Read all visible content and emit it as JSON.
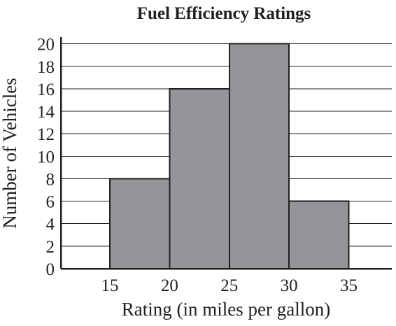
{
  "chart_data": {
    "type": "bar",
    "title": "Fuel Efficiency Ratings",
    "xlabel": "Rating (in miles per gallon)",
    "ylabel": "Number of Vehicles",
    "bins": [
      {
        "x0": 15,
        "x1": 20,
        "value": 8
      },
      {
        "x0": 20,
        "x1": 25,
        "value": 16
      },
      {
        "x0": 25,
        "x1": 30,
        "value": 20
      },
      {
        "x0": 30,
        "x1": 35,
        "value": 6
      }
    ],
    "x_ticks": [
      15,
      20,
      25,
      30,
      35
    ],
    "y_ticks": [
      0,
      2,
      4,
      6,
      8,
      10,
      12,
      14,
      16,
      18,
      20
    ],
    "xlim": [
      10.9,
      38.6
    ],
    "ylim": [
      0,
      20.6
    ],
    "grid": "horizontal",
    "bar_color": "#939598",
    "line_color": "#231f20"
  }
}
